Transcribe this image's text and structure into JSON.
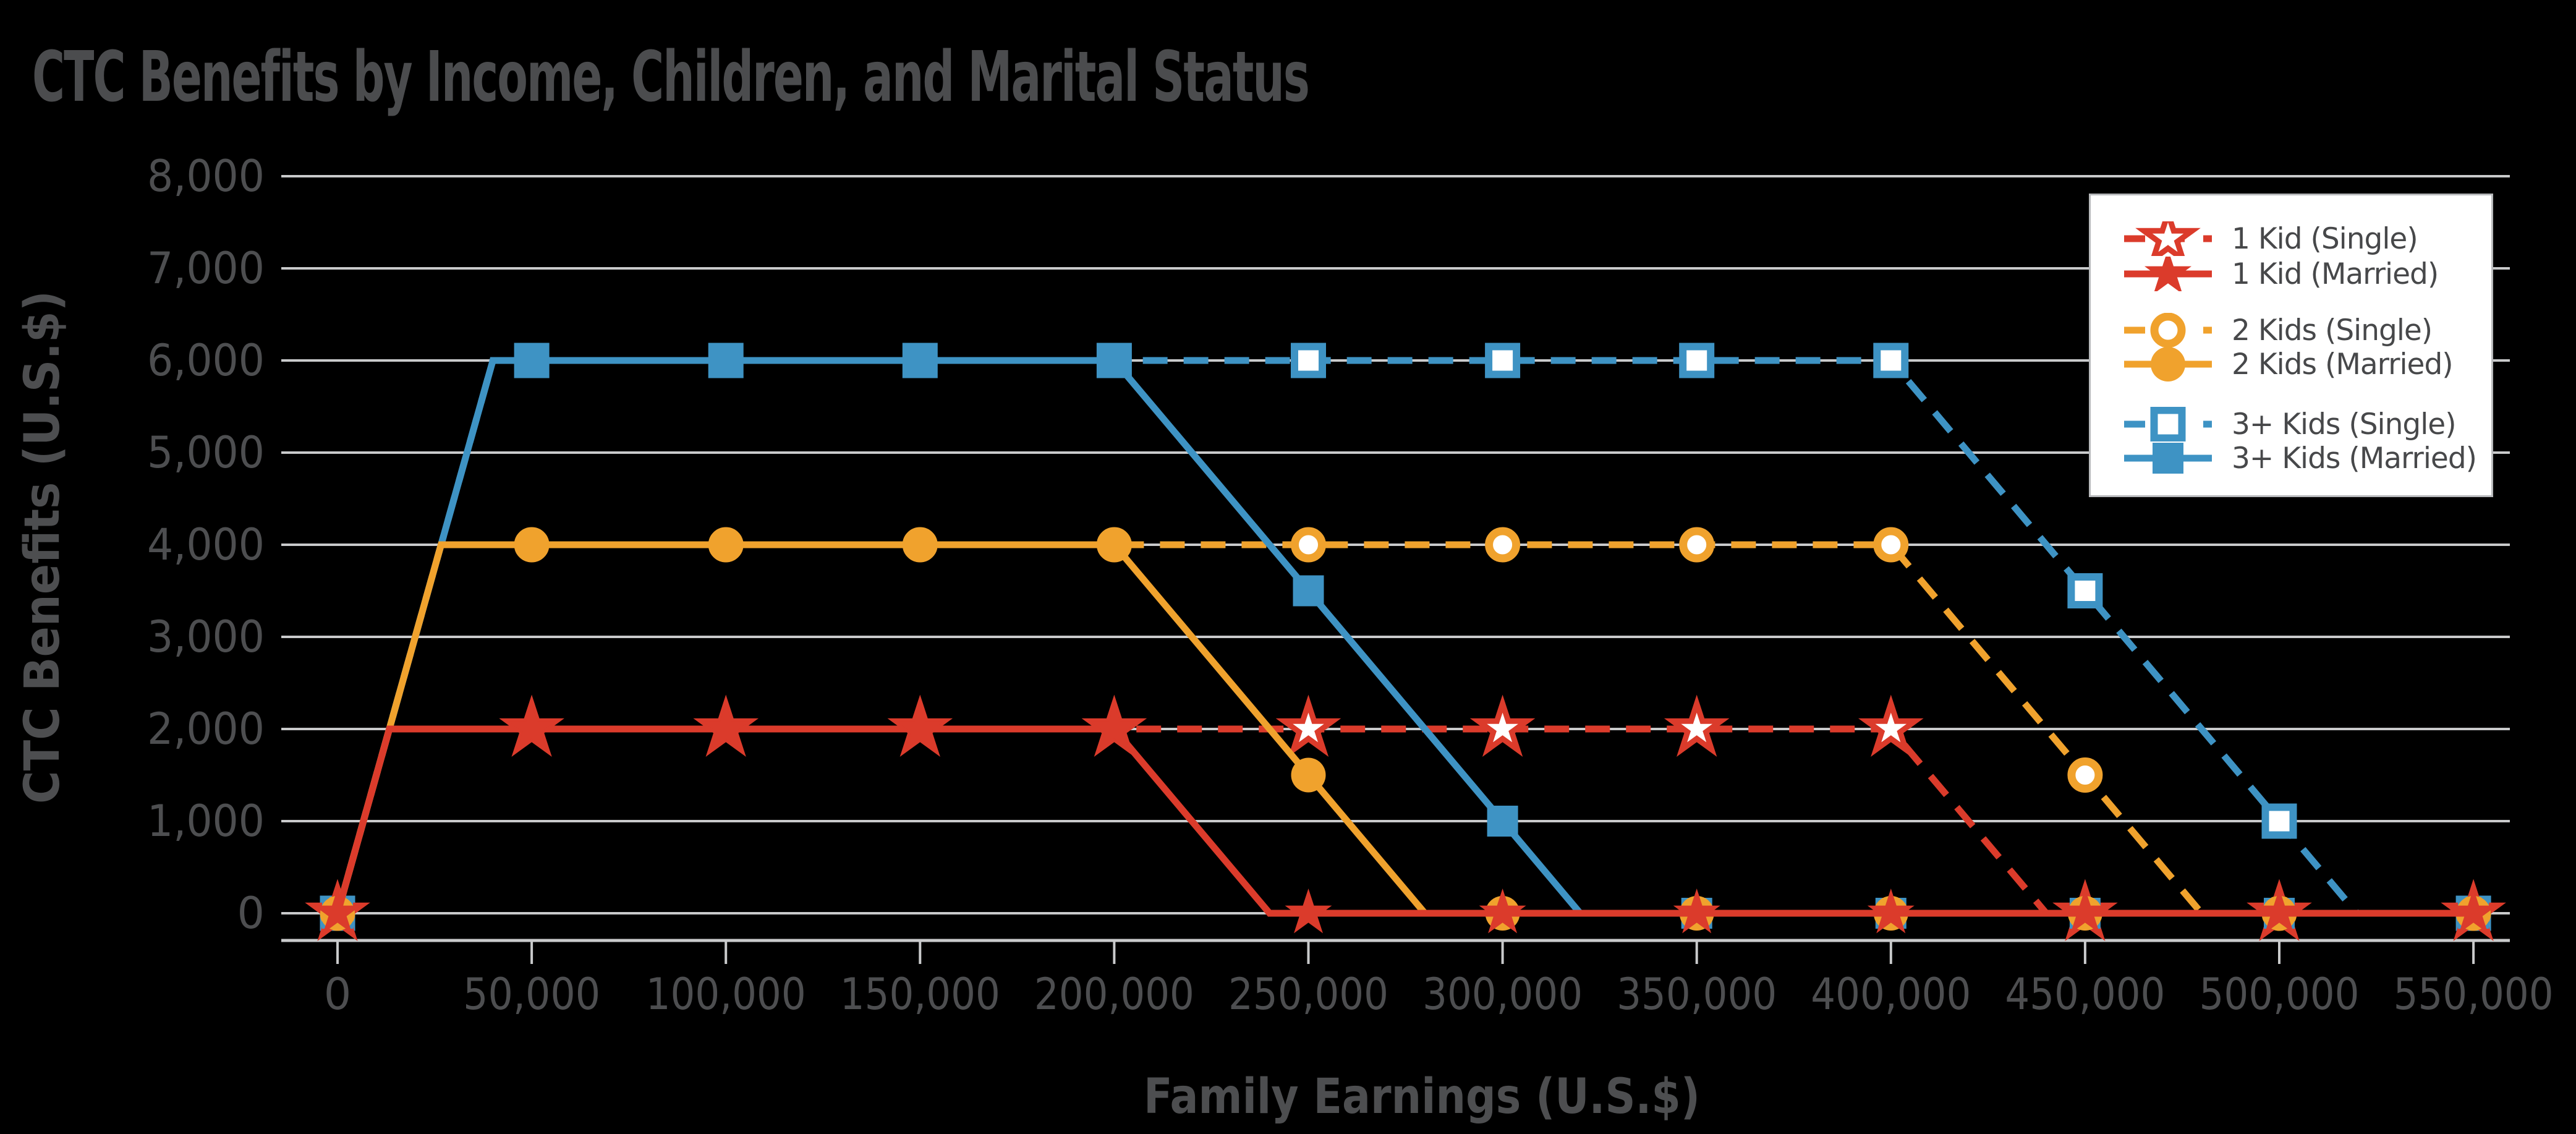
{
  "title": "CTC Benefits by Income, Children, and Marital Status",
  "colors": {
    "background": "#000000",
    "title_text": "#4b4c4e",
    "axis_text": "#4d4e50",
    "gridline": "#c9cacb",
    "legend_text": "#47484a",
    "legend_border": "#b7b9bb",
    "legend_background": "#ffffff",
    "red": "#db3b2b",
    "orange": "#f0a22d",
    "blue": "#3e93c4"
  },
  "chart_data": {
    "type": "line",
    "title": "CTC Benefits by Income, Children, and Marital Status",
    "xlabel": "Family Earnings (U.S.$)",
    "ylabel": "CTC Benefits (U.S.$)",
    "xlim": [
      -14500,
      559000
    ],
    "ylim": [
      0,
      8000
    ],
    "x_ticks": [
      0,
      50000,
      100000,
      150000,
      200000,
      250000,
      300000,
      350000,
      400000,
      450000,
      500000,
      550000
    ],
    "x_tick_labels": [
      "0",
      "50,000",
      "100,000",
      "150,000",
      "200,000",
      "250,000",
      "300,000",
      "350,000",
      "400,000",
      "450,000",
      "500,000",
      "550,000"
    ],
    "y_ticks": [
      0,
      1000,
      2000,
      3000,
      4000,
      5000,
      6000,
      7000,
      8000
    ],
    "y_tick_labels": [
      "0",
      "1,000",
      "2,000",
      "3,000",
      "4,000",
      "5,000",
      "6,000",
      "7,000",
      "8,000"
    ],
    "grid": "horizontal",
    "legend_position": "top-right",
    "series": [
      {
        "name": "1 Kid (Single)",
        "kids": "1",
        "marital": "single",
        "color": "#db3b2b",
        "line": "dashed",
        "marker": "star-open",
        "points": [
          [
            0,
            0
          ],
          [
            13333,
            2000
          ],
          [
            400000,
            2000
          ],
          [
            440000,
            0
          ],
          [
            550000,
            0
          ]
        ],
        "markers": [
          [
            0,
            0
          ],
          [
            50000,
            2000
          ],
          [
            100000,
            2000
          ],
          [
            150000,
            2000
          ],
          [
            200000,
            2000
          ],
          [
            250000,
            2000
          ],
          [
            300000,
            2000
          ],
          [
            350000,
            2000
          ],
          [
            400000,
            2000
          ],
          [
            450000,
            0
          ],
          [
            500000,
            0
          ],
          [
            550000,
            0
          ]
        ]
      },
      {
        "name": "1 Kid (Married)",
        "kids": "1",
        "marital": "married",
        "color": "#db3b2b",
        "line": "solid",
        "marker": "star-filled",
        "points": [
          [
            0,
            0
          ],
          [
            13333,
            2000
          ],
          [
            200000,
            2000
          ],
          [
            240000,
            0
          ],
          [
            550000,
            0
          ]
        ],
        "markers": [
          [
            0,
            0
          ],
          [
            50000,
            2000
          ],
          [
            100000,
            2000
          ],
          [
            150000,
            2000
          ],
          [
            200000,
            2000
          ],
          [
            250000,
            0
          ],
          [
            300000,
            0
          ],
          [
            350000,
            0
          ],
          [
            400000,
            0
          ],
          [
            450000,
            0
          ],
          [
            500000,
            0
          ],
          [
            550000,
            0
          ]
        ]
      },
      {
        "name": "2 Kids (Single)",
        "kids": "2",
        "marital": "single",
        "color": "#f0a22d",
        "line": "dashed",
        "marker": "circle-open",
        "points": [
          [
            0,
            0
          ],
          [
            26667,
            4000
          ],
          [
            400000,
            4000
          ],
          [
            480000,
            0
          ],
          [
            550000,
            0
          ]
        ],
        "markers": [
          [
            0,
            0
          ],
          [
            50000,
            4000
          ],
          [
            100000,
            4000
          ],
          [
            150000,
            4000
          ],
          [
            200000,
            4000
          ],
          [
            250000,
            4000
          ],
          [
            300000,
            4000
          ],
          [
            350000,
            4000
          ],
          [
            400000,
            4000
          ],
          [
            450000,
            1500
          ],
          [
            500000,
            0
          ],
          [
            550000,
            0
          ]
        ]
      },
      {
        "name": "2 Kids (Married)",
        "kids": "2",
        "marital": "married",
        "color": "#f0a22d",
        "line": "solid",
        "marker": "circle-filled",
        "points": [
          [
            0,
            0
          ],
          [
            26667,
            4000
          ],
          [
            200000,
            4000
          ],
          [
            280000,
            0
          ],
          [
            550000,
            0
          ]
        ],
        "markers": [
          [
            0,
            0
          ],
          [
            50000,
            4000
          ],
          [
            100000,
            4000
          ],
          [
            150000,
            4000
          ],
          [
            200000,
            4000
          ],
          [
            250000,
            1500
          ],
          [
            300000,
            0
          ],
          [
            350000,
            0
          ],
          [
            400000,
            0
          ],
          [
            450000,
            0
          ],
          [
            500000,
            0
          ],
          [
            550000,
            0
          ]
        ]
      },
      {
        "name": "3+ Kids (Single)",
        "kids": "3+",
        "marital": "single",
        "color": "#3e93c4",
        "line": "dashed",
        "marker": "square-open",
        "points": [
          [
            0,
            0
          ],
          [
            40000,
            6000
          ],
          [
            400000,
            6000
          ],
          [
            520000,
            0
          ],
          [
            550000,
            0
          ]
        ],
        "markers": [
          [
            0,
            0
          ],
          [
            50000,
            6000
          ],
          [
            100000,
            6000
          ],
          [
            150000,
            6000
          ],
          [
            200000,
            6000
          ],
          [
            250000,
            6000
          ],
          [
            300000,
            6000
          ],
          [
            350000,
            6000
          ],
          [
            400000,
            6000
          ],
          [
            450000,
            3500
          ],
          [
            500000,
            1000
          ],
          [
            550000,
            0
          ]
        ]
      },
      {
        "name": "3+ Kids (Married)",
        "kids": "3+",
        "marital": "married",
        "color": "#3e93c4",
        "line": "solid",
        "marker": "square-filled",
        "points": [
          [
            0,
            0
          ],
          [
            40000,
            6000
          ],
          [
            200000,
            6000
          ],
          [
            320000,
            0
          ],
          [
            550000,
            0
          ]
        ],
        "markers": [
          [
            0,
            0
          ],
          [
            50000,
            6000
          ],
          [
            100000,
            6000
          ],
          [
            150000,
            6000
          ],
          [
            200000,
            6000
          ],
          [
            250000,
            3500
          ],
          [
            300000,
            1000
          ],
          [
            350000,
            0
          ],
          [
            400000,
            0
          ],
          [
            450000,
            0
          ],
          [
            500000,
            0
          ],
          [
            550000,
            0
          ]
        ]
      }
    ]
  }
}
